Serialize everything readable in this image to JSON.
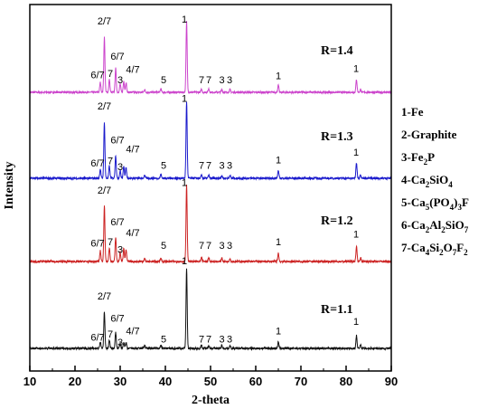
{
  "chart_data": {
    "type": "line",
    "title": "",
    "xlabel": "2-theta",
    "ylabel": "Intensity",
    "xlim": [
      10,
      90
    ],
    "x_ticks": [
      "10",
      "20",
      "30",
      "40",
      "50",
      "60",
      "70",
      "80",
      "90"
    ],
    "y_ticks_shown": false,
    "grid": false,
    "legend_position": "right",
    "legend": [
      {
        "num": "1",
        "parts": [
          {
            "t": "Fe"
          }
        ]
      },
      {
        "num": "2",
        "parts": [
          {
            "t": "Graphite"
          }
        ]
      },
      {
        "num": "3",
        "parts": [
          {
            "t": "Fe"
          },
          {
            "t": "2",
            "sub": true
          },
          {
            "t": "P"
          }
        ]
      },
      {
        "num": "4",
        "parts": [
          {
            "t": "Ca"
          },
          {
            "t": "2",
            "sub": true
          },
          {
            "t": "SiO"
          },
          {
            "t": "4",
            "sub": true
          }
        ]
      },
      {
        "num": "5",
        "parts": [
          {
            "t": "Ca"
          },
          {
            "t": "5",
            "sub": true
          },
          {
            "t": "(PO"
          },
          {
            "t": "4",
            "sub": true
          },
          {
            "t": ")"
          },
          {
            "t": "3",
            "sub": true
          },
          {
            "t": "F"
          }
        ]
      },
      {
        "num": "6",
        "parts": [
          {
            "t": "Ca"
          },
          {
            "t": "2",
            "sub": true
          },
          {
            "t": "Al"
          },
          {
            "t": "2",
            "sub": true
          },
          {
            "t": "SiO"
          },
          {
            "t": "7",
            "sub": true
          }
        ]
      },
      {
        "num": "7",
        "parts": [
          {
            "t": "Ca"
          },
          {
            "t": "4",
            "sub": true
          },
          {
            "t": "Si"
          },
          {
            "t": "2",
            "sub": true
          },
          {
            "t": "O"
          },
          {
            "t": "7",
            "sub": true
          },
          {
            "t": "F"
          },
          {
            "t": "2",
            "sub": true
          }
        ]
      }
    ],
    "series": [
      {
        "name": "R=1.4",
        "color": "#cc44cc",
        "peaks": [
          {
            "x": 25.6,
            "h": 0.14
          },
          {
            "x": 26.5,
            "h": 0.78
          },
          {
            "x": 27.6,
            "h": 0.18
          },
          {
            "x": 29.0,
            "h": 0.34
          },
          {
            "x": 30.0,
            "h": 0.12
          },
          {
            "x": 30.8,
            "h": 0.16
          },
          {
            "x": 31.3,
            "h": 0.14
          },
          {
            "x": 35.4,
            "h": 0.04
          },
          {
            "x": 39.0,
            "h": 0.05
          },
          {
            "x": 44.7,
            "h": 1.0
          },
          {
            "x": 48.0,
            "h": 0.04
          },
          {
            "x": 49.6,
            "h": 0.05
          },
          {
            "x": 52.5,
            "h": 0.04
          },
          {
            "x": 54.3,
            "h": 0.04
          },
          {
            "x": 65.0,
            "h": 0.1
          },
          {
            "x": 82.3,
            "h": 0.18
          },
          {
            "x": 83.2,
            "h": 0.04
          }
        ],
        "labels": [
          {
            "text": "6/7",
            "x": 25.0,
            "h": 0.16
          },
          {
            "text": "2/7",
            "x": 26.5,
            "h": 0.92
          },
          {
            "text": "7",
            "x": 27.8,
            "h": 0.18
          },
          {
            "text": "6/7",
            "x": 29.4,
            "h": 0.42
          },
          {
            "text": "3",
            "x": 30.0,
            "h": 0.09
          },
          {
            "text": "4/7",
            "x": 32.8,
            "h": 0.24
          },
          {
            "text": "5",
            "x": 39.6,
            "h": 0.09
          },
          {
            "text": "1",
            "x": 44.2,
            "h": 0.95
          },
          {
            "text": "7",
            "x": 48.0,
            "h": 0.09
          },
          {
            "text": "7",
            "x": 49.6,
            "h": 0.09
          },
          {
            "text": "3",
            "x": 52.5,
            "h": 0.09
          },
          {
            "text": "3",
            "x": 54.2,
            "h": 0.09
          },
          {
            "text": "1",
            "x": 65.0,
            "h": 0.15
          },
          {
            "text": "1",
            "x": 82.2,
            "h": 0.25
          }
        ]
      },
      {
        "name": "R=1.3",
        "color": "#1a1acc",
        "peaks": [
          {
            "x": 25.6,
            "h": 0.12
          },
          {
            "x": 26.5,
            "h": 0.72
          },
          {
            "x": 27.6,
            "h": 0.16
          },
          {
            "x": 29.0,
            "h": 0.3
          },
          {
            "x": 30.0,
            "h": 0.1
          },
          {
            "x": 30.8,
            "h": 0.16
          },
          {
            "x": 31.3,
            "h": 0.14
          },
          {
            "x": 35.4,
            "h": 0.04
          },
          {
            "x": 39.0,
            "h": 0.05
          },
          {
            "x": 44.7,
            "h": 1.0
          },
          {
            "x": 48.0,
            "h": 0.04
          },
          {
            "x": 49.6,
            "h": 0.04
          },
          {
            "x": 52.5,
            "h": 0.04
          },
          {
            "x": 54.3,
            "h": 0.04
          },
          {
            "x": 65.0,
            "h": 0.1
          },
          {
            "x": 82.3,
            "h": 0.2
          },
          {
            "x": 83.2,
            "h": 0.05
          }
        ],
        "labels": [
          {
            "text": "6/7",
            "x": 25.0,
            "h": 0.12
          },
          {
            "text": "2/7",
            "x": 26.5,
            "h": 0.86
          },
          {
            "text": "7",
            "x": 27.8,
            "h": 0.15
          },
          {
            "text": "6/7",
            "x": 29.4,
            "h": 0.42
          },
          {
            "text": "3",
            "x": 30.0,
            "h": 0.07
          },
          {
            "text": "4/7",
            "x": 32.8,
            "h": 0.3
          },
          {
            "text": "5",
            "x": 39.6,
            "h": 0.09
          },
          {
            "text": "1",
            "x": 44.2,
            "h": 0.96
          },
          {
            "text": "7",
            "x": 48.0,
            "h": 0.09
          },
          {
            "text": "7",
            "x": 49.6,
            "h": 0.09
          },
          {
            "text": "3",
            "x": 52.5,
            "h": 0.09
          },
          {
            "text": "3",
            "x": 54.2,
            "h": 0.09
          },
          {
            "text": "1",
            "x": 65.0,
            "h": 0.16
          },
          {
            "text": "1",
            "x": 82.2,
            "h": 0.26
          }
        ]
      },
      {
        "name": "R=1.2",
        "color": "#cc2222",
        "peaks": [
          {
            "x": 25.6,
            "h": 0.14
          },
          {
            "x": 26.5,
            "h": 0.74
          },
          {
            "x": 27.6,
            "h": 0.18
          },
          {
            "x": 29.0,
            "h": 0.32
          },
          {
            "x": 30.0,
            "h": 0.12
          },
          {
            "x": 30.8,
            "h": 0.18
          },
          {
            "x": 31.3,
            "h": 0.16
          },
          {
            "x": 35.4,
            "h": 0.04
          },
          {
            "x": 39.0,
            "h": 0.05
          },
          {
            "x": 44.7,
            "h": 1.0
          },
          {
            "x": 48.0,
            "h": 0.05
          },
          {
            "x": 49.6,
            "h": 0.05
          },
          {
            "x": 52.5,
            "h": 0.05
          },
          {
            "x": 54.3,
            "h": 0.04
          },
          {
            "x": 65.0,
            "h": 0.11
          },
          {
            "x": 82.3,
            "h": 0.2
          },
          {
            "x": 83.2,
            "h": 0.05
          }
        ],
        "labels": [
          {
            "text": "6/7",
            "x": 25.0,
            "h": 0.16
          },
          {
            "text": "2/7",
            "x": 26.5,
            "h": 0.86
          },
          {
            "text": "7",
            "x": 27.8,
            "h": 0.18
          },
          {
            "text": "6/7",
            "x": 29.4,
            "h": 0.44
          },
          {
            "text": "3",
            "x": 30.0,
            "h": 0.08
          },
          {
            "text": "4/7",
            "x": 32.8,
            "h": 0.3
          },
          {
            "text": "5",
            "x": 39.6,
            "h": 0.13
          },
          {
            "text": "1",
            "x": 44.2,
            "h": 0.96
          },
          {
            "text": "7",
            "x": 48.0,
            "h": 0.13
          },
          {
            "text": "7",
            "x": 49.6,
            "h": 0.13
          },
          {
            "text": "3",
            "x": 52.5,
            "h": 0.13
          },
          {
            "text": "3",
            "x": 54.2,
            "h": 0.13
          },
          {
            "text": "1",
            "x": 65.0,
            "h": 0.18
          },
          {
            "text": "1",
            "x": 82.2,
            "h": 0.28
          }
        ]
      },
      {
        "name": "R=1.1",
        "color": "#111111",
        "peaks": [
          {
            "x": 25.6,
            "h": 0.08
          },
          {
            "x": 26.5,
            "h": 0.46
          },
          {
            "x": 27.6,
            "h": 0.1
          },
          {
            "x": 29.0,
            "h": 0.2
          },
          {
            "x": 30.0,
            "h": 0.06
          },
          {
            "x": 30.8,
            "h": 0.08
          },
          {
            "x": 31.3,
            "h": 0.07
          },
          {
            "x": 35.4,
            "h": 0.04
          },
          {
            "x": 39.0,
            "h": 0.04
          },
          {
            "x": 44.7,
            "h": 1.0
          },
          {
            "x": 48.0,
            "h": 0.04
          },
          {
            "x": 49.6,
            "h": 0.04
          },
          {
            "x": 52.5,
            "h": 0.04
          },
          {
            "x": 54.3,
            "h": 0.03
          },
          {
            "x": 65.0,
            "h": 0.08
          },
          {
            "x": 82.3,
            "h": 0.16
          },
          {
            "x": 83.2,
            "h": 0.04
          }
        ],
        "labels": [
          {
            "text": "6/7",
            "x": 25.0,
            "h": 0.06
          },
          {
            "text": "2/7",
            "x": 26.5,
            "h": 0.58
          },
          {
            "text": "7",
            "x": 27.8,
            "h": 0.1
          },
          {
            "text": "6/7",
            "x": 29.4,
            "h": 0.3
          },
          {
            "text": "3",
            "x": 30.0,
            "h": 0.0
          },
          {
            "text": "4/7",
            "x": 32.8,
            "h": 0.14
          },
          {
            "text": "5",
            "x": 39.6,
            "h": 0.04
          },
          {
            "text": "1",
            "x": 44.2,
            "h": 1.02
          },
          {
            "text": "7",
            "x": 48.0,
            "h": 0.04
          },
          {
            "text": "7",
            "x": 49.6,
            "h": 0.04
          },
          {
            "text": "3",
            "x": 52.5,
            "h": 0.04
          },
          {
            "text": "3",
            "x": 54.2,
            "h": 0.04
          },
          {
            "text": "1",
            "x": 65.0,
            "h": 0.14
          },
          {
            "text": "1",
            "x": 82.2,
            "h": 0.26
          }
        ]
      }
    ]
  }
}
